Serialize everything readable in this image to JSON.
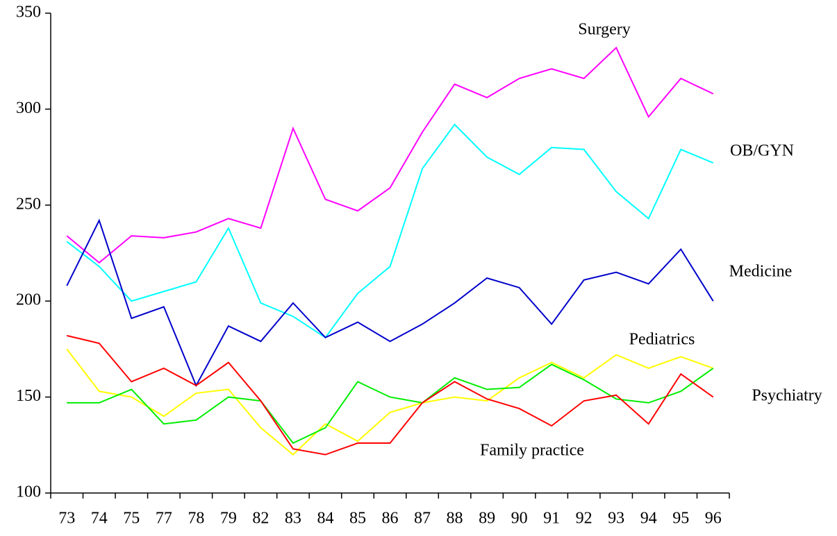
{
  "chart_data": {
    "type": "line",
    "categories": [
      "73",
      "74",
      "75",
      "77",
      "78",
      "79",
      "82",
      "83",
      "84",
      "85",
      "86",
      "87",
      "88",
      "89",
      "90",
      "91",
      "92",
      "93",
      "94",
      "95",
      "96"
    ],
    "series": [
      {
        "name": "Surgery",
        "color": "#ff00ff",
        "values": [
          234,
          220,
          234,
          233,
          236,
          243,
          238,
          290,
          253,
          247,
          259,
          288,
          313,
          306,
          316,
          321,
          316,
          332,
          296,
          316,
          308
        ]
      },
      {
        "name": "OB/GYN",
        "color": "#00ffff",
        "values": [
          231,
          218,
          200,
          205,
          210,
          238,
          199,
          192,
          181,
          204,
          218,
          269,
          292,
          275,
          266,
          280,
          279,
          257,
          243,
          279,
          272
        ]
      },
      {
        "name": "Medicine",
        "color": "#0000cc",
        "values": [
          208,
          242,
          191,
          197,
          156,
          187,
          179,
          199,
          181,
          189,
          179,
          188,
          199,
          212,
          207,
          188,
          211,
          215,
          209,
          227,
          200
        ]
      },
      {
        "name": "Pediatrics",
        "color": "#ffff00",
        "values": [
          175,
          153,
          150,
          140,
          152,
          154,
          134,
          120,
          136,
          127,
          142,
          147,
          150,
          148,
          160,
          168,
          160,
          172,
          165,
          171,
          165
        ]
      },
      {
        "name": "Psychiatry",
        "color": "#00ee00",
        "values": [
          147,
          147,
          154,
          136,
          138,
          150,
          148,
          126,
          134,
          158,
          150,
          147,
          160,
          154,
          155,
          167,
          159,
          149,
          147,
          153,
          165
        ]
      },
      {
        "name": "Family practice",
        "color": "#ff0000",
        "values": [
          182,
          178,
          158,
          165,
          156,
          168,
          148,
          123,
          120,
          126,
          126,
          147,
          158,
          149,
          144,
          135,
          148,
          151,
          136,
          162,
          150
        ]
      }
    ],
    "ylim": [
      100,
      350
    ],
    "yticks": [
      100,
      150,
      200,
      250,
      300,
      350
    ],
    "grid": false
  }
}
